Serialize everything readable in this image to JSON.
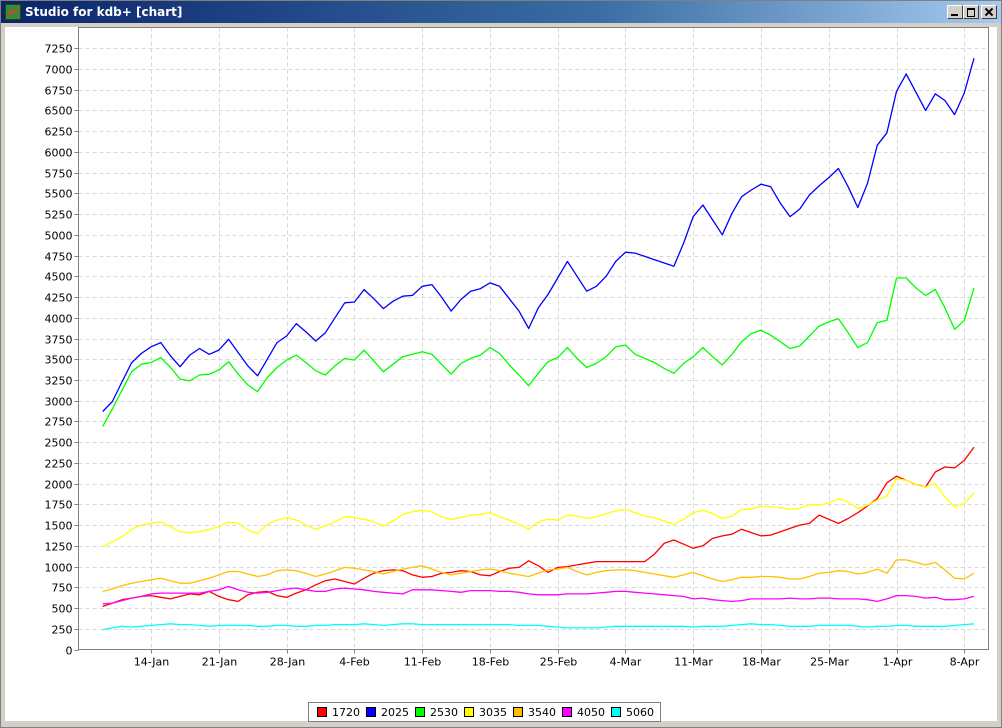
{
  "window": {
    "title": "Studio for kdb+ [chart]"
  },
  "chart_data": {
    "type": "line",
    "title": "",
    "xlabel": "",
    "ylabel": "",
    "ylim": [
      0,
      7500
    ],
    "yticks": [
      0,
      250,
      500,
      750,
      1000,
      1250,
      1500,
      1750,
      2000,
      2250,
      2500,
      2750,
      3000,
      3250,
      3500,
      3750,
      4000,
      4250,
      4500,
      4750,
      5000,
      5250,
      5500,
      5750,
      6000,
      6250,
      6500,
      6750,
      7000,
      7250
    ],
    "x_tick_labels": [
      "14-Jan",
      "21-Jan",
      "28-Jan",
      "4-Feb",
      "11-Feb",
      "18-Feb",
      "25-Feb",
      "4-Mar",
      "11-Mar",
      "18-Mar",
      "25-Mar",
      "1-Apr",
      "8-Apr"
    ],
    "x_range_days": [
      6.5,
      100.5
    ],
    "x": [
      9,
      10,
      11,
      12,
      13,
      14,
      15,
      16,
      17,
      18,
      19,
      20,
      21,
      22,
      23,
      24,
      25,
      26,
      27,
      28,
      29,
      30,
      31,
      32,
      33,
      34,
      35,
      36,
      37,
      38,
      39,
      40,
      41,
      42,
      43,
      44,
      45,
      46,
      47,
      48,
      49,
      50,
      51,
      52,
      53,
      54,
      55,
      56,
      57,
      58,
      59,
      60,
      61,
      62,
      63,
      64,
      65,
      66,
      67,
      68,
      69,
      70,
      71,
      72,
      73,
      74,
      75,
      76,
      77,
      78,
      79,
      80,
      81,
      82,
      83,
      84,
      85,
      86,
      87,
      88,
      89,
      90,
      91,
      92,
      93,
      94,
      95,
      96,
      97,
      98,
      99
    ],
    "grid": true,
    "legend_position": "bottom",
    "series": [
      {
        "name": "1720",
        "color": "#ff0000",
        "values": [
          520,
          560,
          600,
          620,
          640,
          650,
          630,
          610,
          640,
          670,
          660,
          700,
          640,
          600,
          580,
          660,
          690,
          700,
          650,
          630,
          680,
          720,
          780,
          830,
          850,
          820,
          790,
          860,
          920,
          950,
          960,
          950,
          900,
          870,
          880,
          920,
          930,
          950,
          940,
          900,
          890,
          940,
          980,
          990,
          1070,
          1010,
          930,
          990,
          1000,
          1020,
          1040,
          1060,
          1060,
          1060,
          1060,
          1060,
          1060,
          1150,
          1280,
          1320,
          1270,
          1220,
          1250,
          1340,
          1370,
          1390,
          1450,
          1410,
          1370,
          1380,
          1420,
          1460,
          1500,
          1520,
          1620,
          1570,
          1520,
          1580,
          1650,
          1730,
          1820,
          2010,
          2090,
          2040,
          1990,
          1960,
          2140,
          2200,
          2190,
          2280,
          2440
        ]
      },
      {
        "name": "2025",
        "color": "#0000ff",
        "values": [
          2870,
          2990,
          3230,
          3460,
          3570,
          3650,
          3700,
          3540,
          3410,
          3550,
          3630,
          3560,
          3610,
          3740,
          3580,
          3420,
          3300,
          3500,
          3700,
          3780,
          3930,
          3830,
          3720,
          3820,
          4000,
          4180,
          4190,
          4340,
          4230,
          4110,
          4200,
          4260,
          4270,
          4380,
          4400,
          4250,
          4080,
          4220,
          4320,
          4350,
          4420,
          4380,
          4230,
          4080,
          3870,
          4120,
          4280,
          4480,
          4680,
          4500,
          4320,
          4380,
          4500,
          4680,
          4790,
          4780,
          4740,
          4700,
          4660,
          4620,
          4900,
          5220,
          5360,
          5180,
          5000,
          5260,
          5460,
          5540,
          5610,
          5580,
          5380,
          5220,
          5310,
          5480,
          5590,
          5690,
          5800,
          5580,
          5330,
          5620,
          6080,
          6230,
          6730,
          6940,
          6720,
          6500,
          6700,
          6620,
          6450,
          6710,
          7130
        ]
      },
      {
        "name": "2530",
        "color": "#00ff00",
        "values": [
          2690,
          2900,
          3130,
          3350,
          3440,
          3460,
          3520,
          3400,
          3260,
          3240,
          3310,
          3320,
          3370,
          3470,
          3320,
          3190,
          3110,
          3280,
          3400,
          3490,
          3550,
          3460,
          3360,
          3310,
          3420,
          3510,
          3490,
          3610,
          3480,
          3350,
          3440,
          3530,
          3560,
          3590,
          3560,
          3440,
          3320,
          3450,
          3510,
          3550,
          3640,
          3570,
          3430,
          3310,
          3180,
          3330,
          3470,
          3520,
          3640,
          3510,
          3400,
          3450,
          3530,
          3650,
          3670,
          3560,
          3510,
          3460,
          3390,
          3330,
          3450,
          3530,
          3640,
          3530,
          3430,
          3560,
          3710,
          3810,
          3850,
          3790,
          3710,
          3630,
          3660,
          3780,
          3900,
          3950,
          3990,
          3820,
          3640,
          3700,
          3940,
          3970,
          4480,
          4480,
          4360,
          4270,
          4340,
          4120,
          3860,
          3970,
          4360
        ]
      },
      {
        "name": "3035",
        "color": "#ffff00",
        "values": [
          1240,
          1300,
          1360,
          1450,
          1500,
          1520,
          1540,
          1480,
          1420,
          1410,
          1420,
          1450,
          1480,
          1540,
          1520,
          1440,
          1400,
          1510,
          1560,
          1590,
          1560,
          1500,
          1450,
          1490,
          1540,
          1600,
          1590,
          1570,
          1540,
          1490,
          1550,
          1630,
          1660,
          1680,
          1660,
          1600,
          1570,
          1590,
          1620,
          1630,
          1650,
          1600,
          1560,
          1510,
          1450,
          1540,
          1570,
          1560,
          1620,
          1610,
          1580,
          1600,
          1640,
          1670,
          1690,
          1650,
          1610,
          1590,
          1550,
          1510,
          1570,
          1650,
          1680,
          1640,
          1580,
          1610,
          1690,
          1690,
          1730,
          1720,
          1710,
          1690,
          1700,
          1750,
          1740,
          1770,
          1820,
          1780,
          1700,
          1740,
          1800,
          1850,
          2060,
          2040,
          1990,
          1960,
          2000,
          1840,
          1720,
          1760,
          1890
        ]
      },
      {
        "name": "3540",
        "color": "#ffc000",
        "values": [
          700,
          730,
          770,
          800,
          820,
          840,
          860,
          830,
          800,
          800,
          830,
          860,
          900,
          940,
          940,
          910,
          880,
          900,
          950,
          960,
          950,
          920,
          880,
          910,
          950,
          990,
          980,
          960,
          940,
          910,
          940,
          970,
          990,
          1010,
          970,
          930,
          900,
          920,
          940,
          960,
          970,
          950,
          920,
          900,
          880,
          920,
          960,
          970,
          990,
          940,
          900,
          930,
          950,
          960,
          960,
          950,
          930,
          910,
          890,
          870,
          900,
          930,
          890,
          850,
          820,
          840,
          870,
          870,
          880,
          880,
          870,
          850,
          850,
          880,
          920,
          930,
          950,
          940,
          910,
          930,
          970,
          920,
          1080,
          1080,
          1050,
          1020,
          1050,
          960,
          860,
          850,
          920
        ]
      },
      {
        "name": "4050",
        "color": "#ff00ff",
        "values": [
          550,
          560,
          590,
          620,
          640,
          670,
          680,
          680,
          680,
          680,
          680,
          700,
          720,
          760,
          720,
          690,
          680,
          690,
          710,
          730,
          740,
          720,
          700,
          700,
          730,
          740,
          730,
          720,
          700,
          690,
          680,
          670,
          720,
          720,
          720,
          710,
          700,
          690,
          710,
          710,
          710,
          700,
          700,
          690,
          670,
          660,
          660,
          660,
          670,
          670,
          670,
          680,
          690,
          700,
          700,
          690,
          680,
          670,
          660,
          650,
          640,
          610,
          620,
          600,
          590,
          580,
          590,
          610,
          610,
          610,
          610,
          620,
          610,
          610,
          620,
          620,
          610,
          610,
          610,
          600,
          580,
          610,
          650,
          650,
          640,
          620,
          630,
          600,
          600,
          610,
          640
        ]
      },
      {
        "name": "5060",
        "color": "#00ffff",
        "values": [
          240,
          260,
          280,
          270,
          280,
          290,
          300,
          310,
          300,
          300,
          290,
          280,
          290,
          290,
          290,
          290,
          280,
          280,
          290,
          290,
          280,
          280,
          290,
          290,
          300,
          300,
          300,
          310,
          300,
          290,
          300,
          310,
          310,
          300,
          300,
          300,
          300,
          300,
          300,
          300,
          300,
          300,
          300,
          290,
          290,
          290,
          280,
          270,
          260,
          260,
          260,
          260,
          270,
          280,
          280,
          280,
          280,
          280,
          280,
          280,
          280,
          270,
          280,
          280,
          280,
          290,
          300,
          310,
          300,
          300,
          290,
          280,
          280,
          280,
          290,
          290,
          290,
          290,
          280,
          270,
          280,
          280,
          290,
          290,
          280,
          280,
          280,
          280,
          290,
          300,
          310
        ]
      }
    ]
  }
}
